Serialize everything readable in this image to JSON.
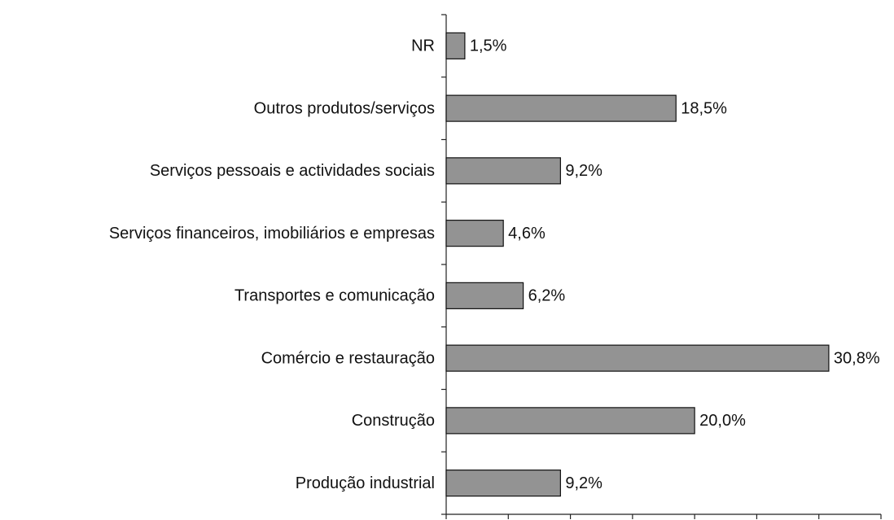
{
  "chart_data": {
    "type": "barh",
    "categories": [
      "NR",
      "Outros produtos/serviços",
      "Serviços pessoais e actividades sociais",
      "Serviços financeiros, imobiliários e empresas",
      "Transportes e comunicação",
      "Comércio e restauração",
      "Construção",
      "Produção industrial"
    ],
    "values": [
      1.5,
      18.5,
      9.2,
      4.6,
      6.2,
      30.8,
      20.0,
      9.2
    ],
    "value_labels": [
      "1,5%",
      "18,5%",
      "9,2%",
      "4,6%",
      "6,2%",
      "30,8%",
      "20,0%",
      "9,2%"
    ],
    "color": "#939393",
    "xlim": [
      0,
      35
    ],
    "xticks": [
      0,
      5,
      10,
      15,
      20,
      25,
      30,
      35
    ],
    "grid": false
  }
}
